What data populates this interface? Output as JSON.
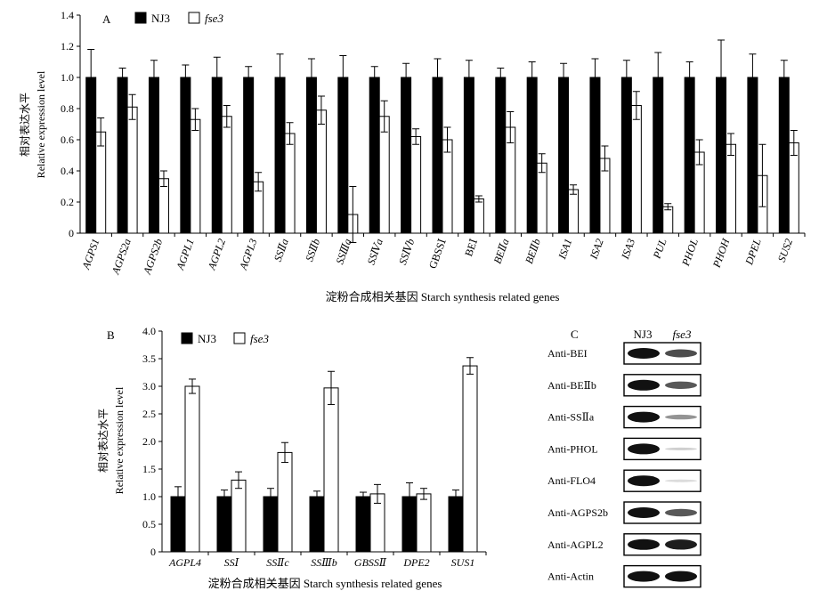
{
  "chart_data": [
    {
      "panel": "A",
      "type": "bar",
      "ylabel_cn": "相对表达水平",
      "ylabel": "Relative expression level",
      "xlabel": "淀粉合成相关基因 Starch synthesis related genes",
      "ylim": [
        0,
        1.4
      ],
      "yticks": [
        "0",
        "0.2",
        "0.4",
        "0.6",
        "0.8",
        "1.0",
        "1.2",
        "1.4"
      ],
      "legend": "top",
      "categories": [
        "AGPS1",
        "AGPS2a",
        "AGPS2b",
        "AGPL1",
        "AGPL2",
        "AGPL3",
        "SSⅡa",
        "SSⅡb",
        "SSⅢa",
        "SSⅣa",
        "SSⅣb",
        "GBSSⅠ",
        "BEⅠ",
        "BEⅡa",
        "BEⅡb",
        "ISA1",
        "ISA2",
        "ISA3",
        "PUL",
        "PHOL",
        "PHOH",
        "DPEL",
        "SUS2"
      ],
      "italic": [
        true,
        true,
        true,
        true,
        true,
        true,
        true,
        true,
        true,
        true,
        true,
        false,
        false,
        true,
        true,
        true,
        true,
        true,
        true,
        true,
        true,
        true,
        true
      ],
      "series": [
        {
          "name": "NJ3",
          "fill": "#000000",
          "values": [
            1,
            1,
            1,
            1,
            1,
            1,
            1,
            1,
            1,
            1,
            1,
            1,
            1,
            1,
            1,
            1,
            1,
            1,
            1,
            1,
            1,
            1,
            1
          ],
          "errors": [
            0.18,
            0.06,
            0.11,
            0.08,
            0.13,
            0.07,
            0.15,
            0.12,
            0.14,
            0.07,
            0.09,
            0.12,
            0.11,
            0.06,
            0.1,
            0.09,
            0.12,
            0.11,
            0.16,
            0.1,
            0.24,
            0.15,
            0.11
          ]
        },
        {
          "name": "fse3",
          "fill": "#ffffff",
          "values": [
            0.65,
            0.81,
            0.35,
            0.73,
            0.75,
            0.33,
            0.64,
            0.79,
            0.12,
            0.75,
            0.62,
            0.6,
            0.22,
            0.68,
            0.45,
            0.28,
            0.48,
            0.82,
            0.17,
            0.52,
            0.57,
            0.37,
            0.58
          ],
          "errors": [
            0.09,
            0.08,
            0.05,
            0.07,
            0.07,
            0.06,
            0.07,
            0.09,
            0.18,
            0.1,
            0.05,
            0.08,
            0.02,
            0.1,
            0.06,
            0.03,
            0.08,
            0.09,
            0.02,
            0.08,
            0.07,
            0.2,
            0.08
          ]
        }
      ]
    },
    {
      "panel": "B",
      "type": "bar",
      "ylabel_cn": "相对表达水平",
      "ylabel": "Relative expression level",
      "xlabel": "淀粉合成相关基因 Starch synthesis related genes",
      "ylim": [
        0,
        4.0
      ],
      "yticks": [
        "0",
        "0.5",
        "1.0",
        "1.5",
        "2.0",
        "2.5",
        "3.0",
        "3.5",
        "4.0"
      ],
      "legend": "top",
      "categories": [
        "AGPL4",
        "SSⅠ",
        "SSⅡc",
        "SSⅢb",
        "GBSSⅡ",
        "DPE2",
        "SUS1"
      ],
      "italic": [
        true,
        true,
        true,
        true,
        true,
        true,
        true
      ],
      "series": [
        {
          "name": "NJ3",
          "fill": "#000000",
          "values": [
            1,
            1,
            1,
            1,
            1,
            1,
            1
          ],
          "errors": [
            0.18,
            0.12,
            0.15,
            0.1,
            0.08,
            0.25,
            0.12
          ]
        },
        {
          "name": "fse3",
          "fill": "#ffffff",
          "values": [
            3.0,
            1.3,
            1.8,
            2.97,
            1.05,
            1.05,
            3.37
          ],
          "errors": [
            0.13,
            0.15,
            0.18,
            0.3,
            0.17,
            0.1,
            0.15
          ]
        }
      ]
    }
  ],
  "panelC": {
    "label": "C",
    "col1": "NJ3",
    "col2": "fse3",
    "rows": [
      {
        "label": "Anti-BEI",
        "nj3": 1.0,
        "fse3": 0.75
      },
      {
        "label": "Anti-BEⅡb",
        "nj3": 1.0,
        "fse3": 0.7
      },
      {
        "label": "Anti-SSⅡa",
        "nj3": 1.0,
        "fse3": 0.45
      },
      {
        "label": "Anti-PHOL",
        "nj3": 1.0,
        "fse3": 0.2
      },
      {
        "label": "Anti-FLO4",
        "nj3": 1.0,
        "fse3": 0.15
      },
      {
        "label": "Anti-AGPS2b",
        "nj3": 1.0,
        "fse3": 0.7
      },
      {
        "label": "Anti-AGPL2",
        "nj3": 1.0,
        "fse3": 0.95
      },
      {
        "label": "Anti-Actin",
        "nj3": 1.0,
        "fse3": 1.0
      }
    ]
  }
}
